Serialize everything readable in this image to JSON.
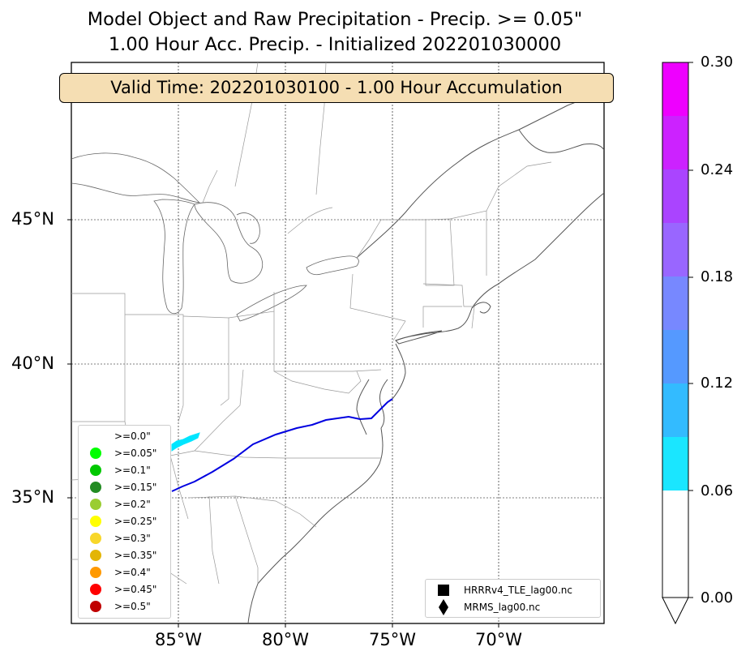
{
  "title_line1": "Model Object and Raw Precipitation - Precip. >= 0.05\"",
  "title_line2": "1.00 Hour Acc. Precip. - Initialized 202201030000",
  "valid_time": "Valid Time: 202201030100 - 1.00 Hour Accumulation",
  "lat_labels": [
    "45°N",
    "40°N",
    "35°N"
  ],
  "lon_labels": [
    "85°W",
    "80°W",
    "75°W",
    "70°W"
  ],
  "threshold_legend": [
    {
      "label": ">=0.0\"",
      "color": "#ffffff"
    },
    {
      "label": ">=0.05\"",
      "color": "#00ff00"
    },
    {
      "label": ">=0.1\"",
      "color": "#00c800"
    },
    {
      "label": ">=0.15\"",
      "color": "#228b22"
    },
    {
      "label": ">=0.2\"",
      "color": "#9acd32"
    },
    {
      "label": ">=0.25\"",
      "color": "#ffff00"
    },
    {
      "label": ">=0.3\"",
      "color": "#f8d72a"
    },
    {
      "label": ">=0.35\"",
      "color": "#e3b505"
    },
    {
      "label": ">=0.4\"",
      "color": "#ff9900"
    },
    {
      "label": ">=0.45\"",
      "color": "#ff0000"
    },
    {
      "label": ">=0.5\"",
      "color": "#c00000"
    }
  ],
  "source_legend": [
    {
      "label": "HRRRv4_TLE_lag00.nc",
      "marker": "square"
    },
    {
      "label": "MRMS_lag00.nc",
      "marker": "diamond"
    }
  ],
  "colorbar": {
    "tick_labels": [
      "0.30",
      "0.24",
      "0.18",
      "0.12",
      "0.06",
      "0.00"
    ],
    "colors": [
      "#ee00ff",
      "#cc22ff",
      "#aa44ff",
      "#9966ff",
      "#7788ff",
      "#5599ff",
      "#33bbff",
      "#1ae6ff"
    ],
    "under_color": "#ffffff"
  },
  "colors": {
    "model_object_line": "#0000e0",
    "precip_fill": "#00e5ff",
    "coast": "#555555",
    "borders": "#999999"
  }
}
